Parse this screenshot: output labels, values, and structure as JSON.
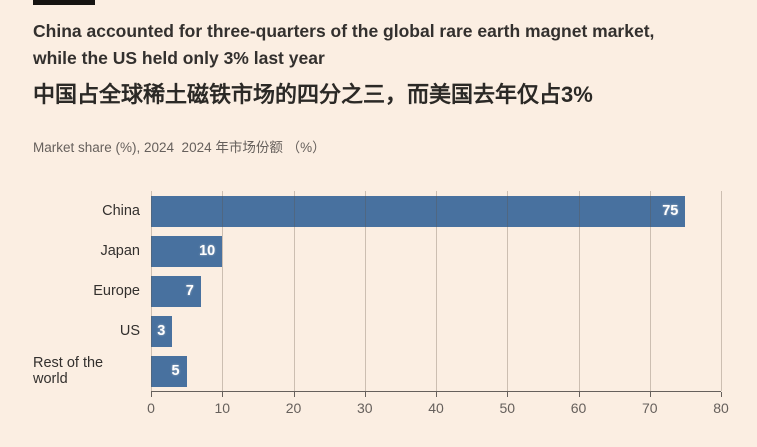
{
  "page": {
    "background": "#FBEEE2",
    "tag_color": "#161412",
    "text_color": "#33302E",
    "muted_text_color": "#66605C"
  },
  "header": {
    "title_en_lines": [
      "China accounted for three-quarters of the global rare earth magnet market,",
      "while the US held only 3% last year"
    ],
    "title_zh": "中国占全球稀土磁铁市场的四分之三，而美国去年仅占3%",
    "subtitle": "Market share (%), 2024  2024 年市场份额 （%）"
  },
  "chart_data": {
    "type": "bar",
    "orientation": "horizontal",
    "title": "Market share (%), 2024  2024 年市场份额 （%）",
    "categories": [
      "China",
      "Japan",
      "Europe",
      "US",
      "Rest of the world"
    ],
    "values": [
      75,
      10,
      7,
      3,
      5
    ],
    "xlabel": "",
    "ylabel": "",
    "xlim": [
      0,
      80
    ],
    "xticks": [
      0,
      10,
      20,
      30,
      40,
      50,
      60,
      70,
      80
    ],
    "grid": true,
    "legend": "none",
    "bar_color": "#48719F",
    "value_label_color": "#FFFFFF",
    "axis_color": "#66605C"
  }
}
